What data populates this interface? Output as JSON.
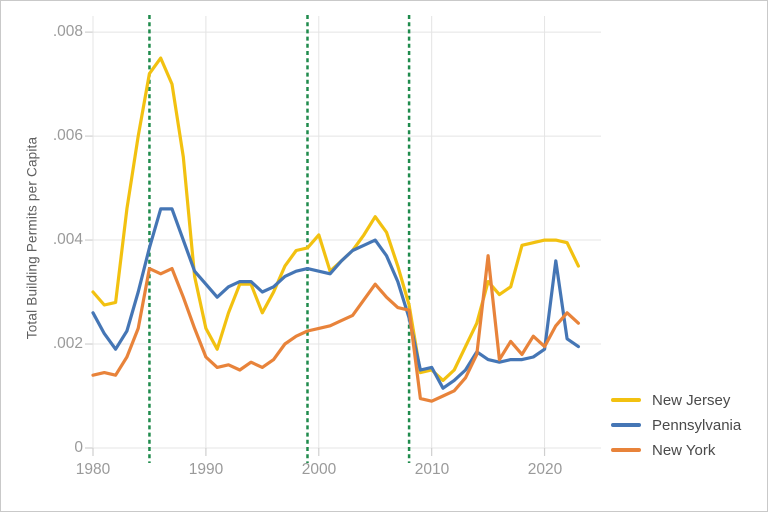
{
  "chart_data": {
    "type": "line",
    "title": "",
    "xlabel": "",
    "ylabel": "Total Building Permits per Capita",
    "grid": "both",
    "legend_position": "bottom-right-outside",
    "xlim": [
      1980,
      2025
    ],
    "ylim": [
      0,
      0.00831
    ],
    "x_ticks": [
      1980,
      1990,
      2000,
      2010,
      2020
    ],
    "x_tick_labels": [
      "1980",
      "1990",
      "2000",
      "2010",
      "2020"
    ],
    "y_ticks": [
      0,
      0.002,
      0.004,
      0.006,
      0.008
    ],
    "y_tick_labels": [
      "0",
      ".002",
      ".004",
      ".006",
      ".008"
    ],
    "x": [
      1980,
      1981,
      1982,
      1983,
      1984,
      1985,
      1986,
      1987,
      1988,
      1989,
      1990,
      1991,
      1992,
      1993,
      1994,
      1995,
      1996,
      1997,
      1998,
      1999,
      2000,
      2001,
      2002,
      2003,
      2004,
      2005,
      2006,
      2007,
      2008,
      2009,
      2010,
      2011,
      2012,
      2013,
      2014,
      2015,
      2016,
      2017,
      2018,
      2019,
      2020,
      2021,
      2022,
      2023
    ],
    "series": [
      {
        "name": "New Jersey",
        "color": "#F2C110",
        "values": [
          0.003,
          0.00275,
          0.0028,
          0.0046,
          0.006,
          0.0072,
          0.0075,
          0.007,
          0.0056,
          0.0033,
          0.0023,
          0.0019,
          0.0026,
          0.00315,
          0.00315,
          0.0026,
          0.003,
          0.0035,
          0.0038,
          0.00385,
          0.0041,
          0.0034,
          0.0036,
          0.0038,
          0.0041,
          0.00445,
          0.00415,
          0.0035,
          0.00275,
          0.00145,
          0.0015,
          0.0013,
          0.0015,
          0.00195,
          0.0024,
          0.0032,
          0.00295,
          0.0031,
          0.0039,
          0.00395,
          0.004,
          0.004,
          0.00395,
          0.0035
        ]
      },
      {
        "name": "Pennsylvania",
        "color": "#4576B5",
        "values": [
          0.0026,
          0.0022,
          0.0019,
          0.00225,
          0.003,
          0.00385,
          0.0046,
          0.0046,
          0.004,
          0.0034,
          0.00315,
          0.0029,
          0.0031,
          0.0032,
          0.0032,
          0.003,
          0.0031,
          0.0033,
          0.0034,
          0.00345,
          0.0034,
          0.00335,
          0.0036,
          0.0038,
          0.0039,
          0.004,
          0.0037,
          0.0032,
          0.0025,
          0.0015,
          0.00155,
          0.00115,
          0.0013,
          0.0015,
          0.00185,
          0.0017,
          0.00165,
          0.0017,
          0.0017,
          0.00175,
          0.0019,
          0.0036,
          0.0021,
          0.00195
        ]
      },
      {
        "name": "New York",
        "color": "#E8833A",
        "values": [
          0.0014,
          0.00145,
          0.0014,
          0.00175,
          0.0023,
          0.00345,
          0.00335,
          0.00345,
          0.0029,
          0.0023,
          0.00175,
          0.00155,
          0.0016,
          0.0015,
          0.00165,
          0.00155,
          0.0017,
          0.002,
          0.00215,
          0.00225,
          0.0023,
          0.00235,
          0.00245,
          0.00255,
          0.00285,
          0.00315,
          0.0029,
          0.0027,
          0.00265,
          0.00095,
          0.0009,
          0.001,
          0.0011,
          0.00135,
          0.0018,
          0.0037,
          0.0017,
          0.00205,
          0.0018,
          0.00215,
          0.00195,
          0.00235,
          0.0026,
          0.0024
        ]
      }
    ],
    "vlines": {
      "x": [
        1985,
        1999,
        2008
      ],
      "color": "#1F8B4C",
      "style": "dashed"
    },
    "colors": {
      "grid": "#e4e4e4",
      "tick": "#cfcfcf",
      "tick_label": "#9a9a9a",
      "axis_title": "#5f5f5f",
      "legend_text": "#4a4a4a",
      "background": "#ffffff",
      "border": "#c9c9c9"
    }
  }
}
